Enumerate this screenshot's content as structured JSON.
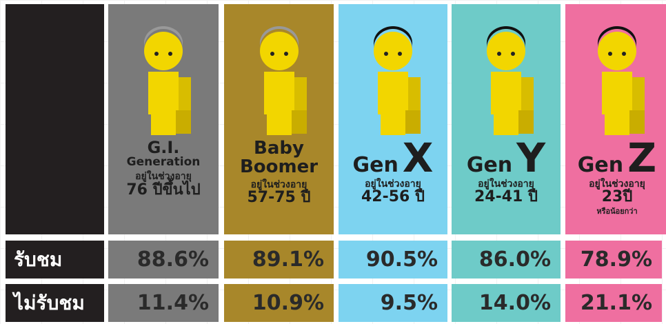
{
  "generations": [
    {
      "title_lines": [
        "G.I.",
        "Generation"
      ],
      "age_label": "อยู่ในช่วงอายุ",
      "age": "76 ปีขึ้นไป"
    },
    {
      "title_lines": [
        "Baby",
        "Boomer"
      ],
      "age_label": "อยู่ในช่วงอายุ",
      "age": "57-75 ปี"
    },
    {
      "title_lines": [
        "Gen",
        "X"
      ],
      "age_label": "อยู่ในช่วงอายุ",
      "age": "42-56 ปี"
    },
    {
      "title_lines": [
        "Gen",
        "Y"
      ],
      "age_label": "อยู่ในช่วงอายุ",
      "age": "24-41 ปี"
    },
    {
      "title_lines": [
        "Gen",
        "Z"
      ],
      "age_label": "อยู่ในช่วงอายุ",
      "age": "23ปี",
      "note": "หรือน้อยกว่า"
    }
  ],
  "rows": [
    {
      "label": "รับชม",
      "values": [
        "88.6%",
        "89.1%",
        "90.5%",
        "86.0%",
        "78.9%"
      ]
    },
    {
      "label": "ไม่รับชม",
      "values": [
        "11.4%",
        "10.9%",
        "9.5%",
        "14.0%",
        "21.1%"
      ]
    }
  ]
}
